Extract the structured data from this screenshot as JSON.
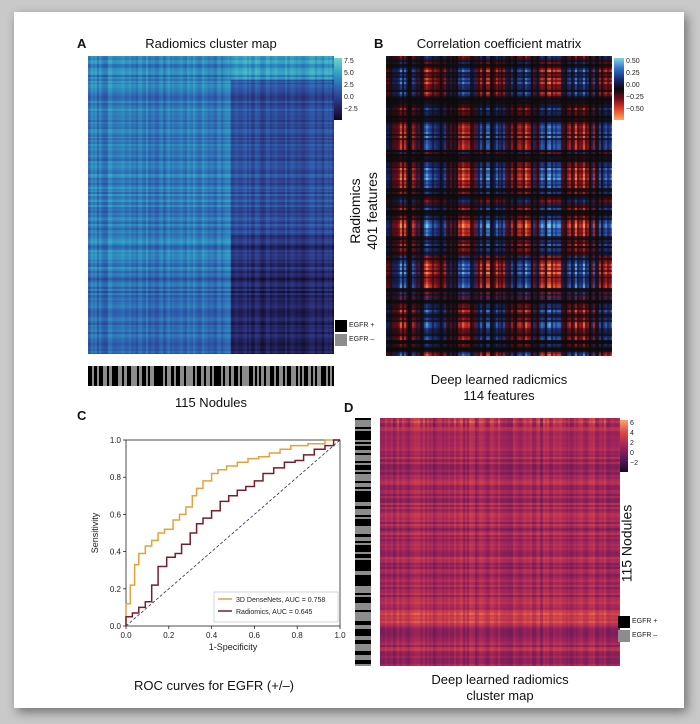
{
  "panels": {
    "a": {
      "letter": "A",
      "title": "Radiomics cluster map",
      "bottom_label": "115 Nodules",
      "colorbar_ticks": [
        "7.5",
        "5.0",
        "2.5",
        "0.0",
        "−2.5"
      ],
      "colormap": [
        "#0d0a25",
        "#2a2c73",
        "#2f5dad",
        "#2f9fc4",
        "#6cd6c5"
      ]
    },
    "b": {
      "letter": "B",
      "title": "Correlation coefficient matrix",
      "side_label_line1": "Radiomics",
      "side_label_line2": "401 features",
      "bottom_label_line1": "Deep learned radicmics",
      "bottom_label_line2": "114 features",
      "colorbar_ticks": [
        "0.50",
        "0.25",
        "0.00",
        "−0.25",
        "−0.50"
      ],
      "colormap": [
        "#f8a55d",
        "#e2452b",
        "#7a0f1b",
        "#0b0b0b",
        "#1e2b75",
        "#2f72c9",
        "#7fd0e6"
      ]
    },
    "c": {
      "letter": "C",
      "title": "ROC curves for EGFR (+/–)"
    },
    "d": {
      "letter": "D",
      "side_label": "115 Nodules",
      "bottom_label_line1": "Deep learned radiomics",
      "bottom_label_line2": "cluster map",
      "colorbar_ticks": [
        "6",
        "4",
        "2",
        "0",
        "−2"
      ],
      "colormap": [
        "#1a0b2e",
        "#5a1a55",
        "#a2245b",
        "#d74745",
        "#f7a173"
      ]
    }
  },
  "egfr_legend": {
    "pos_label": "EGFR +",
    "neg_label": "EGFR –",
    "pos_color": "#000000",
    "neg_color": "#8c8c8c"
  },
  "egfr_pattern": [
    1,
    1,
    0,
    1,
    0,
    1,
    1,
    0,
    0,
    1,
    0,
    1,
    1,
    1,
    0,
    0,
    1,
    0,
    1,
    1,
    0,
    0,
    0,
    1,
    0,
    1,
    1,
    0,
    1,
    0,
    0,
    1,
    1,
    1,
    1,
    0,
    1,
    0,
    0,
    1,
    0,
    1,
    1,
    0,
    0,
    1,
    0,
    0,
    0,
    1,
    0,
    1,
    1,
    0,
    1,
    0,
    0,
    1,
    0,
    1,
    1,
    1,
    0,
    1,
    0,
    0,
    1,
    0,
    1,
    1,
    0,
    1,
    0,
    0,
    0,
    1,
    1,
    0,
    1,
    0,
    1,
    0,
    1,
    0,
    0,
    1,
    1,
    0,
    1,
    0,
    0,
    1,
    0,
    1,
    1,
    0,
    0,
    1,
    0,
    1,
    0,
    1,
    1,
    0,
    1,
    0,
    1,
    0,
    0,
    1,
    1,
    0,
    1,
    0,
    1
  ],
  "chart_data": {
    "type": "line",
    "title": "ROC curves for EGFR (+/–)",
    "xlabel": "1-Specificity",
    "ylabel": "Sensitivity",
    "xlim": [
      0,
      1
    ],
    "ylim": [
      0,
      1
    ],
    "xticks": [
      0.0,
      0.2,
      0.4,
      0.6,
      0.8,
      1.0
    ],
    "yticks": [
      0.0,
      0.2,
      0.4,
      0.6,
      0.8,
      1.0
    ],
    "legend_position": "lower-right",
    "series": [
      {
        "name": "3D DenseNets, AUC = 0.758",
        "color": "#e9a03a",
        "x": [
          0.0,
          0.0,
          0.02,
          0.02,
          0.04,
          0.04,
          0.06,
          0.06,
          0.09,
          0.09,
          0.12,
          0.12,
          0.15,
          0.15,
          0.18,
          0.18,
          0.22,
          0.22,
          0.25,
          0.25,
          0.28,
          0.28,
          0.31,
          0.31,
          0.33,
          0.33,
          0.36,
          0.36,
          0.4,
          0.4,
          0.43,
          0.43,
          0.47,
          0.47,
          0.52,
          0.52,
          0.57,
          0.57,
          0.62,
          0.62,
          0.67,
          0.67,
          0.72,
          0.72,
          0.77,
          0.77,
          0.85,
          0.85,
          0.93,
          0.93,
          1.0
        ],
        "y": [
          0.0,
          0.12,
          0.12,
          0.22,
          0.22,
          0.33,
          0.33,
          0.39,
          0.39,
          0.43,
          0.43,
          0.46,
          0.46,
          0.5,
          0.5,
          0.52,
          0.52,
          0.57,
          0.57,
          0.6,
          0.6,
          0.64,
          0.64,
          0.7,
          0.7,
          0.74,
          0.74,
          0.78,
          0.78,
          0.82,
          0.82,
          0.84,
          0.84,
          0.86,
          0.86,
          0.88,
          0.88,
          0.9,
          0.9,
          0.91,
          0.91,
          0.93,
          0.93,
          0.95,
          0.95,
          0.97,
          0.97,
          0.98,
          0.98,
          1.0,
          1.0
        ]
      },
      {
        "name": "Radiomics, AUC = 0.645",
        "color": "#7b1c2a",
        "x": [
          0.0,
          0.0,
          0.03,
          0.03,
          0.06,
          0.06,
          0.09,
          0.09,
          0.12,
          0.12,
          0.15,
          0.15,
          0.19,
          0.19,
          0.23,
          0.23,
          0.26,
          0.26,
          0.3,
          0.3,
          0.33,
          0.33,
          0.36,
          0.36,
          0.4,
          0.4,
          0.44,
          0.44,
          0.48,
          0.48,
          0.52,
          0.52,
          0.56,
          0.56,
          0.6,
          0.6,
          0.64,
          0.64,
          0.69,
          0.69,
          0.74,
          0.74,
          0.79,
          0.79,
          0.83,
          0.83,
          0.88,
          0.88,
          0.93,
          0.93,
          0.97,
          0.97,
          1.0
        ],
        "y": [
          0.0,
          0.05,
          0.05,
          0.07,
          0.07,
          0.1,
          0.1,
          0.13,
          0.13,
          0.22,
          0.22,
          0.32,
          0.32,
          0.37,
          0.37,
          0.39,
          0.39,
          0.44,
          0.44,
          0.5,
          0.5,
          0.55,
          0.55,
          0.58,
          0.58,
          0.62,
          0.62,
          0.67,
          0.67,
          0.7,
          0.7,
          0.73,
          0.73,
          0.75,
          0.75,
          0.78,
          0.78,
          0.82,
          0.82,
          0.85,
          0.85,
          0.88,
          0.88,
          0.89,
          0.89,
          0.92,
          0.92,
          0.95,
          0.95,
          0.97,
          0.97,
          1.0,
          1.0
        ]
      },
      {
        "name": "",
        "color": "#2d2d52",
        "dashed": true,
        "x": [
          0,
          1
        ],
        "y": [
          0,
          1
        ]
      }
    ]
  }
}
